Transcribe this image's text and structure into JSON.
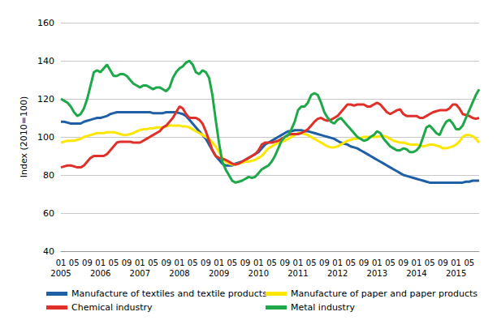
{
  "chart_data": {
    "type": "line",
    "y_label": "Index (2010=100)",
    "ylim": [
      40,
      160
    ],
    "yticks": [
      40,
      60,
      80,
      100,
      120,
      140,
      160
    ],
    "grid": true,
    "legend": "bottom",
    "categories": [
      "01\n2005",
      null,
      null,
      null,
      "05",
      null,
      null,
      null,
      "09",
      null,
      null,
      null,
      "01\n2006",
      null,
      null,
      null,
      "05",
      null,
      null,
      null,
      "09",
      null,
      null,
      null,
      "01\n2007",
      null,
      null,
      null,
      "05",
      null,
      null,
      null,
      "09",
      null,
      null,
      null,
      "01\n2008",
      null,
      null,
      null,
      "05",
      null,
      null,
      null,
      "09",
      null,
      null,
      null,
      "01\n2009",
      null,
      null,
      null,
      "05",
      null,
      null,
      null,
      "09",
      null,
      null,
      null,
      "01\n2010",
      null,
      null,
      null,
      "05",
      null,
      null,
      null,
      "09",
      null,
      null,
      null,
      "01\n2011",
      null,
      null,
      null,
      "05",
      null,
      null,
      null,
      "09",
      null,
      null,
      null,
      "01\n2012",
      null,
      null,
      null,
      "05",
      null,
      null,
      null,
      "09",
      null,
      null,
      null,
      "01\n2013",
      null,
      null,
      null,
      "05",
      null,
      null,
      null,
      "09",
      null,
      null,
      null,
      "01\n2014",
      null,
      null,
      null,
      "05",
      null,
      null,
      null,
      "09",
      null,
      null,
      null,
      "01\n2015",
      null,
      null,
      null,
      "05",
      null,
      null,
      null
    ],
    "series": [
      {
        "name": "Manufacture of textiles and textile products",
        "color": "#1f5fa6",
        "values": [
          108,
          108,
          107.5,
          107,
          107,
          107,
          107,
          108,
          108.5,
          109,
          109.5,
          110,
          110,
          110.5,
          111,
          112,
          112.5,
          113,
          113,
          113,
          113,
          113,
          113,
          113,
          113,
          113,
          113,
          113,
          112.5,
          112.5,
          112.5,
          112.5,
          113,
          113,
          113,
          113,
          112.5,
          112,
          111,
          109,
          107,
          105,
          103,
          101,
          99,
          96,
          93,
          90,
          88,
          86,
          85,
          85,
          85,
          86,
          86.5,
          87,
          88,
          89,
          90,
          91,
          92,
          94,
          96,
          97,
          98,
          99,
          100,
          101,
          102,
          103,
          103,
          103.5,
          103.5,
          103.5,
          103,
          103,
          102.5,
          102,
          101.5,
          101,
          100.5,
          100,
          99.5,
          99,
          98,
          97,
          96.5,
          96,
          95,
          94.5,
          94,
          93,
          92,
          91,
          90,
          89,
          88,
          87,
          86,
          85,
          84,
          83,
          82,
          81,
          80,
          79.5,
          79,
          78.5,
          78,
          77.5,
          77,
          76.5,
          76,
          76,
          76,
          76,
          76,
          76,
          76,
          76,
          76,
          76,
          76,
          76.5,
          76.5,
          77,
          77,
          77
        ]
      },
      {
        "name": "Manufacture of paper and paper products",
        "color": "#ffe600",
        "values": [
          97,
          97.5,
          98,
          98,
          98,
          98.5,
          99,
          100,
          100.5,
          101,
          101.5,
          102,
          102,
          102,
          102.5,
          102.5,
          102.5,
          102,
          101.5,
          101,
          101,
          101.5,
          102,
          103,
          103.5,
          104,
          104,
          104.5,
          104.5,
          105,
          105,
          105,
          105.5,
          106,
          106,
          106,
          106,
          105.5,
          105.5,
          105,
          104,
          103,
          102,
          101,
          100,
          99,
          97,
          95,
          92,
          89,
          87,
          86,
          85.5,
          85.5,
          86,
          86.5,
          87,
          87,
          87.5,
          88,
          89,
          90,
          92,
          94,
          95,
          96,
          97,
          97.5,
          98,
          99,
          100,
          101,
          102,
          102,
          101.5,
          101,
          100,
          99,
          98,
          97,
          96,
          95,
          94.5,
          94.5,
          95,
          96,
          97,
          98,
          98.5,
          99,
          99,
          99.5,
          100,
          100,
          100,
          100,
          100,
          100.5,
          100.5,
          100,
          99,
          98,
          97.5,
          97,
          97,
          96.5,
          96,
          96,
          96,
          95.5,
          95,
          95.5,
          96,
          96,
          95.5,
          95,
          94,
          94,
          94.5,
          95,
          96,
          97.5,
          100,
          101,
          101,
          100.5,
          99,
          97
        ]
      },
      {
        "name": "Chemical industry",
        "color": "#e0302a",
        "values": [
          84,
          84.5,
          85,
          85,
          84.5,
          84,
          84,
          85,
          87,
          89,
          90,
          90,
          90,
          90,
          91,
          93,
          95,
          97,
          97.5,
          97.5,
          97.5,
          97.5,
          97,
          97,
          97,
          98,
          99,
          100,
          101,
          102,
          103,
          105,
          106,
          108,
          110,
          113,
          116,
          115,
          112,
          110,
          110,
          110,
          109,
          107,
          103,
          98,
          93,
          90,
          89,
          88.5,
          88,
          87,
          86,
          85.5,
          86,
          87,
          88,
          89,
          90,
          91,
          93,
          96,
          97,
          97,
          97,
          97.5,
          98,
          99,
          100,
          101,
          101.5,
          101.5,
          101.5,
          102,
          103,
          104,
          106,
          108,
          109.5,
          110,
          109,
          108.5,
          109,
          110,
          111,
          113,
          115,
          117,
          117,
          116.5,
          117,
          117,
          117,
          116,
          116,
          117,
          118,
          117,
          115,
          113,
          112,
          113,
          114,
          114.5,
          112,
          111,
          111,
          111,
          111,
          110,
          110,
          111,
          112,
          113,
          113.5,
          114,
          114,
          114,
          115,
          117,
          117,
          115,
          112,
          111.5,
          111,
          110,
          109.5,
          110
        ]
      },
      {
        "name": "Metal industry",
        "color": "#1ea84a",
        "values": [
          120,
          119,
          118,
          116,
          113,
          111,
          112,
          115,
          120,
          127,
          134,
          135,
          134,
          136,
          138,
          135,
          132,
          132,
          133,
          133,
          132,
          130,
          128,
          127,
          126,
          127,
          127,
          126,
          125,
          126,
          126,
          125,
          124,
          126,
          131,
          134,
          136,
          137,
          139,
          140,
          138,
          134,
          133,
          135,
          134,
          131,
          122,
          109,
          97,
          87,
          83,
          80,
          77,
          76,
          76.5,
          77,
          78,
          79,
          78.5,
          79,
          81,
          83,
          84,
          85,
          87,
          90,
          94,
          98,
          100,
          101,
          104,
          108,
          114,
          116,
          116,
          118,
          122,
          123,
          122,
          118,
          113,
          110,
          108,
          107,
          109,
          110,
          108,
          106,
          104,
          102,
          100,
          99,
          98,
          98.5,
          100,
          101,
          103,
          102,
          99,
          97,
          95,
          94,
          93,
          93,
          94,
          93.5,
          92,
          92,
          93,
          95,
          100,
          105,
          106,
          104,
          102,
          101,
          105,
          108,
          109,
          107,
          104,
          104,
          106,
          110,
          114,
          118,
          122,
          125
        ]
      }
    ]
  }
}
